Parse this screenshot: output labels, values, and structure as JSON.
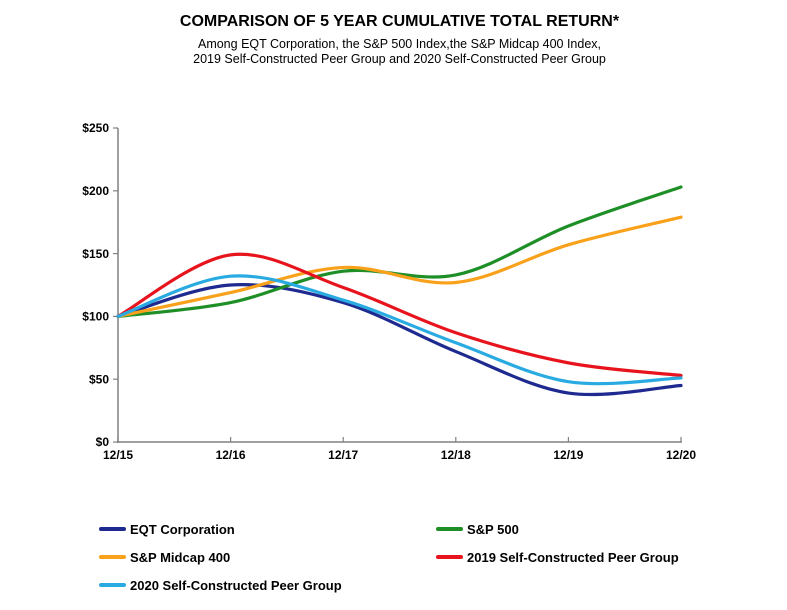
{
  "header": {
    "title": "COMPARISON OF 5 YEAR CUMULATIVE TOTAL RETURN*",
    "subtitle_line1": "Among EQT Corporation, the S&P 500 Index,the S&P Midcap 400 Index,",
    "subtitle_line2": "2019 Self-Constructed Peer Group and 2020 Self-Constructed Peer Group"
  },
  "chart_data": {
    "type": "line",
    "smoothed": true,
    "title": "COMPARISON OF 5 YEAR CUMULATIVE TOTAL RETURN*",
    "categories": [
      "12/15",
      "12/16",
      "12/17",
      "12/18",
      "12/19",
      "12/20"
    ],
    "series": [
      {
        "name": "EQT Corporation",
        "color": "#1E2A8F",
        "values": [
          100,
          125,
          111,
          72,
          39,
          45
        ]
      },
      {
        "name": "S&P 500",
        "color": "#1E8F26",
        "values": [
          100,
          111,
          136,
          133,
          172,
          203
        ]
      },
      {
        "name": "S&P Midcap 400",
        "color": "#F9A11B",
        "values": [
          100,
          119,
          139,
          127,
          157,
          179
        ]
      },
      {
        "name": "2019 Self-Constructed Peer Group",
        "color": "#E8141D",
        "values": [
          100,
          149,
          123,
          87,
          63,
          53
        ]
      },
      {
        "name": "2020 Self-Constructed Peer Group",
        "color": "#29ABE2",
        "values": [
          100,
          132,
          113,
          79,
          48,
          51
        ]
      }
    ],
    "xlabel": "",
    "ylabel": "",
    "ylim": [
      0,
      250
    ],
    "ytick_step": 50,
    "ytick_labels": [
      "$0",
      "$50",
      "$100",
      "$150",
      "$200",
      "$250"
    ],
    "grid": false,
    "legend_position": "bottom",
    "axis_color": "#808080",
    "line_width": 3.2
  }
}
